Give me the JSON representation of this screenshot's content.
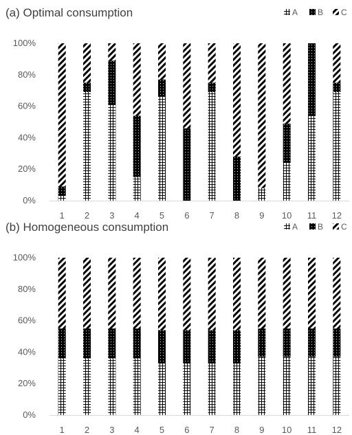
{
  "chart_data": [
    {
      "type": "bar",
      "stacked": true,
      "percent_stacked": true,
      "title": "(a) Optimal consumption",
      "categories": [
        "1",
        "2",
        "3",
        "4",
        "5",
        "6",
        "7",
        "8",
        "9",
        "10",
        "11",
        "12"
      ],
      "series": [
        {
          "name": "A",
          "pattern": "grid",
          "values": [
            3,
            69,
            61,
            15,
            66,
            0,
            69,
            0,
            8,
            24,
            54,
            69
          ]
        },
        {
          "name": "B",
          "pattern": "dots-black",
          "values": [
            6,
            6,
            28,
            39,
            11,
            46,
            6,
            28,
            0,
            25,
            46,
            6
          ]
        },
        {
          "name": "C",
          "pattern": "diagonal-stripes",
          "values": [
            91,
            25,
            11,
            46,
            23,
            54,
            25,
            72,
            92,
            51,
            0,
            25
          ]
        }
      ],
      "y_ticks": [
        "0%",
        "20%",
        "40%",
        "60%",
        "80%",
        "100%"
      ],
      "ylim": [
        0,
        100
      ],
      "legend_position": "top-right",
      "grid": false
    },
    {
      "type": "bar",
      "stacked": true,
      "percent_stacked": true,
      "title": "(b) Homogeneous consumption",
      "categories": [
        "1",
        "2",
        "3",
        "4",
        "5",
        "6",
        "7",
        "8",
        "9",
        "10",
        "11",
        "12"
      ],
      "series": [
        {
          "name": "A",
          "pattern": "grid",
          "values": [
            36,
            36,
            36,
            36,
            33,
            33,
            33,
            33,
            37,
            37,
            37,
            37
          ]
        },
        {
          "name": "B",
          "pattern": "dots-black",
          "values": [
            19,
            19,
            19,
            19,
            21,
            21,
            21,
            21,
            18,
            18,
            18,
            18
          ]
        },
        {
          "name": "C",
          "pattern": "diagonal-stripes",
          "values": [
            45,
            45,
            45,
            45,
            46,
            46,
            46,
            46,
            45,
            45,
            45,
            45
          ]
        }
      ],
      "y_ticks": [
        "0%",
        "20%",
        "40%",
        "60%",
        "80%",
        "100%"
      ],
      "ylim": [
        0,
        100
      ],
      "legend_position": "top-right",
      "grid": false
    }
  ]
}
